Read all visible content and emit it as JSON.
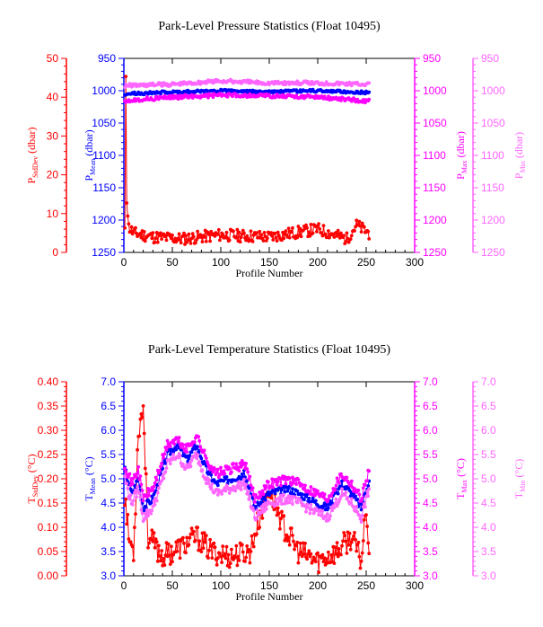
{
  "colors": {
    "stddev": "#ff0000",
    "mean": "#0000ff",
    "max": "#ff00ff",
    "min": "#ff66ff",
    "axis": "#000000"
  },
  "chart_data": [
    {
      "type": "line",
      "title": "Park-Level Pressure Statistics (Float 10495)",
      "xlabel": "Profile Number",
      "xlim": [
        0,
        300
      ],
      "xticks": [
        "0",
        "50",
        "100",
        "150",
        "200",
        "250",
        "300"
      ],
      "axes": {
        "stddev": {
          "label_main": "P",
          "label_sub": "StdDev",
          "label_unit": " (dbar)",
          "ylim": [
            0,
            50
          ],
          "ticks": [
            "0",
            "10",
            "20",
            "30",
            "40",
            "50"
          ]
        },
        "mean": {
          "label_main": "P",
          "label_sub": "Mean",
          "label_unit": " (dbar)",
          "ylim": [
            1250,
            950
          ],
          "ticks": [
            "950",
            "1000",
            "1050",
            "1100",
            "1150",
            "1200",
            "1250"
          ]
        },
        "max": {
          "label_main": "P",
          "label_sub": "Max",
          "label_unit": " (dbar)",
          "ylim": [
            1250,
            950
          ],
          "ticks": [
            "950",
            "1000",
            "1050",
            "1100",
            "1150",
            "1200",
            "1250"
          ]
        },
        "min": {
          "label_main": "P",
          "label_sub": "Min",
          "label_unit": " (dbar)",
          "ylim": [
            1250,
            950
          ],
          "ticks": [
            "950",
            "1000",
            "1050",
            "1100",
            "1150",
            "1200",
            "1250"
          ]
        }
      },
      "profile_range": [
        1,
        253
      ],
      "series": [
        {
          "name": "P StdDev (dbar)",
          "axis": "stddev",
          "color": "#ff0000",
          "knots": [
            [
              1,
              5.0
            ],
            [
              2,
              46.0
            ],
            [
              3,
              14.0
            ],
            [
              5,
              6.5
            ],
            [
              10,
              5.0
            ],
            [
              30,
              4.0
            ],
            [
              60,
              3.5
            ],
            [
              100,
              4.5
            ],
            [
              150,
              4.0
            ],
            [
              200,
              6.0
            ],
            [
              230,
              3.5
            ],
            [
              240,
              7.0
            ],
            [
              253,
              5.0
            ]
          ],
          "noise": 1.6,
          "seed": 11
        },
        {
          "name": "P Mean (dbar)",
          "axis": "mean",
          "color": "#0000ff",
          "knots": [
            [
              1,
              1005
            ],
            [
              50,
              1002
            ],
            [
              100,
              1000
            ],
            [
              150,
              1002
            ],
            [
              200,
              1000
            ],
            [
              253,
              1003
            ]
          ],
          "noise": 2.2,
          "seed": 23
        },
        {
          "name": "P Max (dbar)",
          "axis": "max",
          "color": "#ff00ff",
          "knots": [
            [
              1,
              1015
            ],
            [
              50,
              1010
            ],
            [
              100,
              1007
            ],
            [
              150,
              1008
            ],
            [
              200,
              1010
            ],
            [
              253,
              1016
            ]
          ],
          "noise": 3.0,
          "seed": 37
        },
        {
          "name": "P Min (dbar)",
          "axis": "min",
          "color": "#ff66ff",
          "knots": [
            [
              1,
              992
            ],
            [
              50,
              990
            ],
            [
              100,
              985
            ],
            [
              150,
              988
            ],
            [
              200,
              988
            ],
            [
              253,
              990
            ]
          ],
          "noise": 3.0,
          "seed": 41
        }
      ]
    },
    {
      "type": "line",
      "title": "Park-Level Temperature Statistics (Float 10495)",
      "xlabel": "Profile Number",
      "xlim": [
        0,
        300
      ],
      "xticks": [
        "0",
        "50",
        "100",
        "150",
        "200",
        "250",
        "300"
      ],
      "axes": {
        "stddev": {
          "label_main": "T",
          "label_sub": "StdDev",
          "label_unit": " (°C)",
          "ylim": [
            0,
            0.4
          ],
          "ticks": [
            "0.00",
            "0.05",
            "0.10",
            "0.15",
            "0.20",
            "0.25",
            "0.30",
            "0.35",
            "0.40"
          ]
        },
        "mean": {
          "label_main": "T",
          "label_sub": "Mean",
          "label_unit": " (°C)",
          "ylim": [
            3.0,
            7.0
          ],
          "ticks": [
            "3.0",
            "3.5",
            "4.0",
            "4.5",
            "5.0",
            "5.5",
            "6.0",
            "6.5",
            "7.0"
          ]
        },
        "max": {
          "label_main": "T",
          "label_sub": "Max",
          "label_unit": " (°C)",
          "ylim": [
            3.0,
            7.0
          ],
          "ticks": [
            "3.0",
            "3.5",
            "4.0",
            "4.5",
            "5.0",
            "5.5",
            "6.0",
            "6.5",
            "7.0"
          ]
        },
        "min": {
          "label_main": "T",
          "label_sub": "Min",
          "label_unit": " (°C)",
          "ylim": [
            3.0,
            7.0
          ],
          "ticks": [
            "3.0",
            "3.5",
            "4.0",
            "4.5",
            "5.0",
            "5.5",
            "6.0",
            "6.5",
            "7.0"
          ]
        }
      },
      "profile_range": [
        1,
        253
      ],
      "series": [
        {
          "name": "T StdDev (°C)",
          "axis": "stddev",
          "color": "#ff0000",
          "knots": [
            [
              1,
              0.17
            ],
            [
              5,
              0.08
            ],
            [
              10,
              0.05
            ],
            [
              15,
              0.3
            ],
            [
              20,
              0.35
            ],
            [
              25,
              0.08
            ],
            [
              40,
              0.04
            ],
            [
              60,
              0.06
            ],
            [
              75,
              0.08
            ],
            [
              90,
              0.05
            ],
            [
              110,
              0.04
            ],
            [
              130,
              0.05
            ],
            [
              140,
              0.12
            ],
            [
              150,
              0.18
            ],
            [
              165,
              0.1
            ],
            [
              180,
              0.05
            ],
            [
              200,
              0.03
            ],
            [
              220,
              0.05
            ],
            [
              235,
              0.08
            ],
            [
              245,
              0.03
            ],
            [
              250,
              0.15
            ],
            [
              253,
              0.05
            ]
          ],
          "noise": 0.025,
          "seed": 53
        },
        {
          "name": "T Mean (°C)",
          "axis": "mean",
          "color": "#0000ff",
          "knots": [
            [
              1,
              5.2
            ],
            [
              8,
              4.7
            ],
            [
              15,
              5.0
            ],
            [
              20,
              4.4
            ],
            [
              30,
              4.6
            ],
            [
              45,
              5.5
            ],
            [
              55,
              5.7
            ],
            [
              65,
              5.4
            ],
            [
              75,
              5.7
            ],
            [
              85,
              5.2
            ],
            [
              95,
              4.9
            ],
            [
              110,
              5.0
            ],
            [
              125,
              5.1
            ],
            [
              135,
              4.4
            ],
            [
              150,
              4.7
            ],
            [
              170,
              4.8
            ],
            [
              190,
              4.6
            ],
            [
              210,
              4.4
            ],
            [
              225,
              4.9
            ],
            [
              235,
              4.7
            ],
            [
              245,
              4.4
            ],
            [
              253,
              5.0
            ]
          ],
          "noise": 0.08,
          "seed": 67
        },
        {
          "name": "T Max (°C)",
          "axis": "max",
          "color": "#ff00ff",
          "knots": [
            [
              1,
              5.3
            ],
            [
              8,
              4.9
            ],
            [
              15,
              5.2
            ],
            [
              20,
              4.6
            ],
            [
              30,
              4.8
            ],
            [
              45,
              5.7
            ],
            [
              55,
              5.8
            ],
            [
              65,
              5.6
            ],
            [
              75,
              5.9
            ],
            [
              85,
              5.4
            ],
            [
              95,
              5.1
            ],
            [
              110,
              5.2
            ],
            [
              125,
              5.3
            ],
            [
              135,
              4.6
            ],
            [
              150,
              4.9
            ],
            [
              170,
              5.0
            ],
            [
              190,
              4.8
            ],
            [
              210,
              4.6
            ],
            [
              225,
              5.1
            ],
            [
              235,
              4.9
            ],
            [
              245,
              4.6
            ],
            [
              253,
              5.2
            ]
          ],
          "noise": 0.1,
          "seed": 71
        },
        {
          "name": "T Min (°C)",
          "axis": "min",
          "color": "#ff66ff",
          "knots": [
            [
              1,
              5.0
            ],
            [
              8,
              4.5
            ],
            [
              15,
              4.8
            ],
            [
              20,
              4.2
            ],
            [
              30,
              4.4
            ],
            [
              45,
              5.3
            ],
            [
              55,
              5.5
            ],
            [
              65,
              5.2
            ],
            [
              75,
              5.5
            ],
            [
              85,
              5.0
            ],
            [
              95,
              4.7
            ],
            [
              110,
              4.8
            ],
            [
              125,
              4.9
            ],
            [
              135,
              4.2
            ],
            [
              150,
              4.5
            ],
            [
              170,
              4.6
            ],
            [
              190,
              4.4
            ],
            [
              210,
              4.2
            ],
            [
              225,
              4.7
            ],
            [
              235,
              4.5
            ],
            [
              245,
              4.2
            ],
            [
              253,
              4.8
            ]
          ],
          "noise": 0.1,
          "seed": 79
        }
      ]
    }
  ]
}
